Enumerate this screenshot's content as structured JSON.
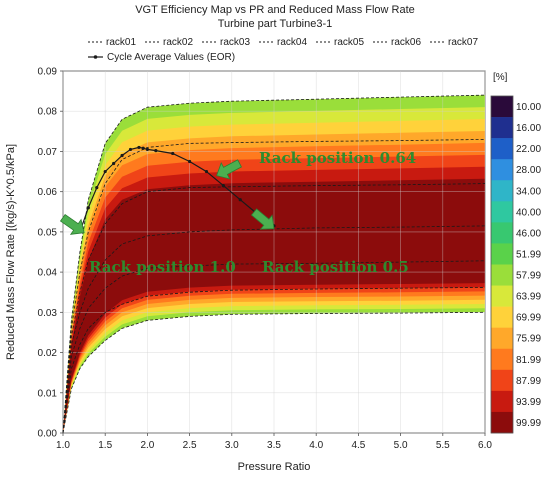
{
  "chart_data": {
    "type": "contour",
    "title": "VGT Efficiency Map vs PR and Reduced Mass Flow Rate",
    "subtitle": "Turbine part Turbine3-1",
    "xlabel": "Pressure Ratio",
    "ylabel": "Reduced Mass Flow Rate [(kg/s)-K^0.5/kPa]",
    "xlim": [
      1.0,
      6.0
    ],
    "ylim": [
      0.0,
      0.09
    ],
    "xticks": [
      "1.0",
      "1.5",
      "2.0",
      "2.5",
      "3.0",
      "3.5",
      "4.0",
      "4.5",
      "5.0",
      "5.5",
      "6.0"
    ],
    "yticks": [
      "0.00",
      "0.01",
      "0.02",
      "0.03",
      "0.04",
      "0.05",
      "0.06",
      "0.07",
      "0.08",
      "0.09"
    ],
    "grid": true,
    "legend": {
      "placement": "top",
      "entries": [
        "rack01",
        "rack02",
        "rack03",
        "rack04",
        "rack05",
        "rack06",
        "rack07"
      ],
      "cycle_label": "Cycle Average Values (EOR)"
    },
    "colorbar": {
      "unit": "[%]",
      "levels": [
        "10.00",
        "16.00",
        "22.00",
        "28.00",
        "34.00",
        "40.00",
        "46.00",
        "51.99",
        "57.99",
        "63.99",
        "69.99",
        "75.99",
        "81.99",
        "87.99",
        "93.99",
        "99.99"
      ],
      "colors": [
        "#2a0a3a",
        "#1f2f8f",
        "#1e5fc8",
        "#2f8fe0",
        "#2fb5c8",
        "#2fc8a0",
        "#38c870",
        "#5ad24a",
        "#9ade3a",
        "#d8e83a",
        "#ffd23a",
        "#ffa82a",
        "#ff7a1e",
        "#f04418",
        "#c81a10",
        "#8c0c0c"
      ]
    },
    "series": [
      {
        "name": "rack07",
        "x": [
          1.0,
          1.1,
          1.2,
          1.3,
          1.5,
          1.7,
          2.0,
          2.5,
          3.0,
          4.0,
          5.0,
          6.0
        ],
        "y": [
          0.0,
          0.028,
          0.045,
          0.058,
          0.072,
          0.078,
          0.081,
          0.082,
          0.0825,
          0.083,
          0.0835,
          0.084
        ]
      },
      {
        "name": "rack06",
        "x": [
          1.0,
          1.1,
          1.2,
          1.3,
          1.5,
          1.7,
          2.0,
          2.5,
          3.0,
          4.0,
          5.0,
          6.0
        ],
        "y": [
          0.0,
          0.026,
          0.04,
          0.05,
          0.062,
          0.068,
          0.071,
          0.072,
          0.0722,
          0.0725,
          0.0727,
          0.073
        ]
      },
      {
        "name": "rack05",
        "x": [
          1.0,
          1.1,
          1.2,
          1.3,
          1.5,
          1.7,
          2.0,
          2.5,
          3.0,
          4.0,
          5.0,
          6.0
        ],
        "y": [
          0.0,
          0.024,
          0.035,
          0.043,
          0.052,
          0.057,
          0.06,
          0.061,
          0.0612,
          0.0615,
          0.0617,
          0.062
        ]
      },
      {
        "name": "rack04",
        "x": [
          1.0,
          1.1,
          1.2,
          1.3,
          1.5,
          1.7,
          2.0,
          2.5,
          3.0,
          4.0,
          5.0,
          6.0
        ],
        "y": [
          0.0,
          0.022,
          0.03,
          0.036,
          0.043,
          0.047,
          0.049,
          0.05,
          0.0505,
          0.051,
          0.0512,
          0.0515
        ]
      },
      {
        "name": "rack03",
        "x": [
          1.0,
          1.1,
          1.2,
          1.3,
          1.5,
          1.7,
          2.0,
          2.5,
          3.0,
          4.0,
          5.0,
          6.0
        ],
        "y": [
          0.0,
          0.019,
          0.026,
          0.031,
          0.036,
          0.039,
          0.041,
          0.0415,
          0.042,
          0.0422,
          0.0425,
          0.0428
        ]
      },
      {
        "name": "rack02",
        "x": [
          1.0,
          1.1,
          1.2,
          1.3,
          1.5,
          1.7,
          2.0,
          2.5,
          3.0,
          4.0,
          5.0,
          6.0
        ],
        "y": [
          0.0,
          0.016,
          0.022,
          0.026,
          0.03,
          0.032,
          0.034,
          0.035,
          0.0355,
          0.0358,
          0.036,
          0.0362
        ]
      },
      {
        "name": "rack01",
        "x": [
          1.0,
          1.1,
          1.2,
          1.3,
          1.5,
          1.7,
          2.0,
          2.5,
          3.0,
          4.0,
          5.0,
          6.0
        ],
        "y": [
          0.0,
          0.011,
          0.016,
          0.019,
          0.023,
          0.026,
          0.028,
          0.029,
          0.0295,
          0.0297,
          0.0298,
          0.03
        ]
      },
      {
        "name": "Cycle Average Values (EOR)",
        "x": [
          1.2,
          1.3,
          1.4,
          1.5,
          1.6,
          1.7,
          1.8,
          1.9,
          1.95,
          2.0,
          2.1,
          2.3,
          2.5,
          2.7,
          2.9,
          3.1,
          3.3,
          3.5
        ],
        "y": [
          0.05,
          0.056,
          0.061,
          0.065,
          0.067,
          0.069,
          0.0705,
          0.071,
          0.0708,
          0.0705,
          0.0702,
          0.0695,
          0.0675,
          0.065,
          0.0615,
          0.058,
          0.0545,
          0.0515
        ]
      }
    ],
    "annotations": [
      {
        "text": "Rack position 0.64",
        "x": 2.85,
        "y": 0.0645
      },
      {
        "text": "Rack position 1.0",
        "x": 1.3,
        "y": 0.0495
      },
      {
        "text": "Rack position 0.5",
        "x": 3.5,
        "y": 0.0505
      }
    ]
  }
}
